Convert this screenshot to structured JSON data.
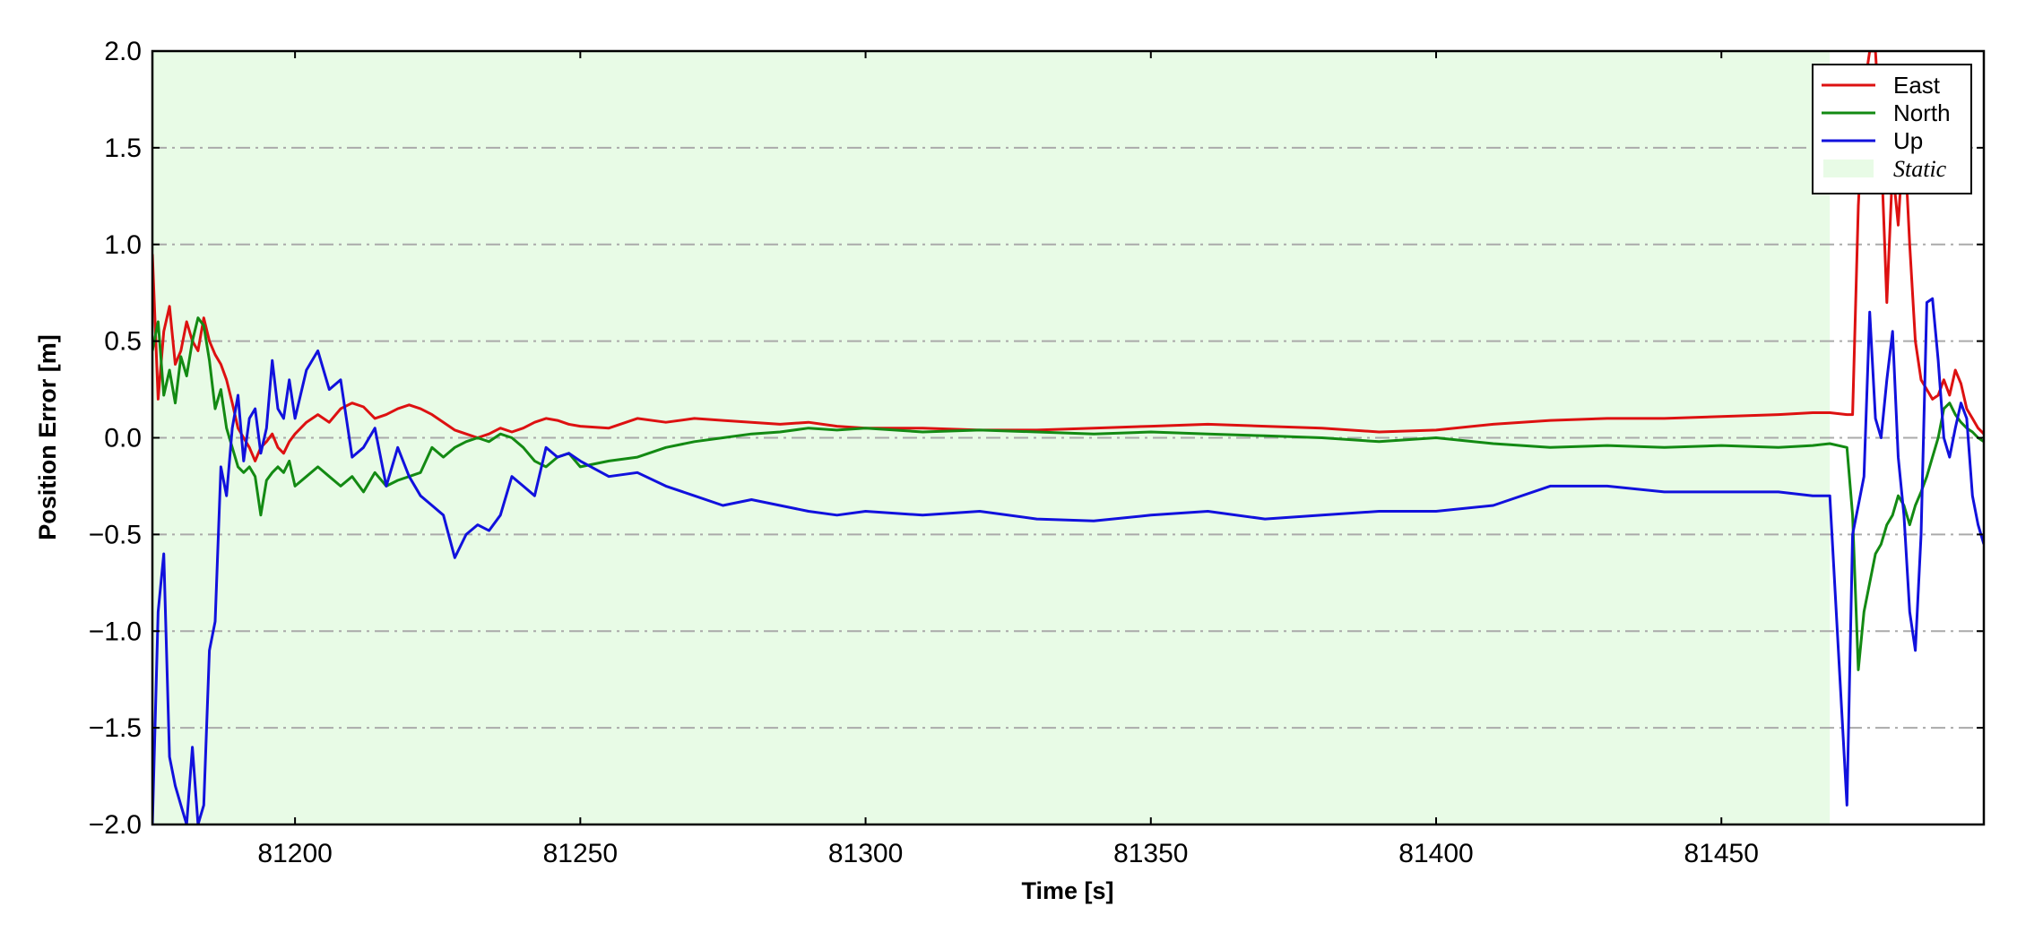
{
  "chart_data": {
    "type": "line",
    "title": "",
    "xlabel": "Time [s]",
    "ylabel": "Position Error [m]",
    "xlim": [
      81175,
      81496
    ],
    "ylim": [
      -2.0,
      2.0
    ],
    "x_ticks": [
      81200,
      81250,
      81300,
      81350,
      81400,
      81450
    ],
    "x_tick_labels": [
      "81200",
      "81250",
      "81300",
      "81350",
      "81400",
      "81450"
    ],
    "y_ticks": [
      2.0,
      1.5,
      1.0,
      0.5,
      0.0,
      -0.5,
      -1.0,
      -1.5,
      -2.0
    ],
    "y_tick_labels": [
      "2.0",
      "1.5",
      "1.0",
      "0.5",
      "0.0",
      "−0.5",
      "−1.0",
      "−1.5",
      "−2.0"
    ],
    "grid": "horizontal dash-dot",
    "legend_position": "top-right",
    "static_region": {
      "label": "Static",
      "x_start": 81175,
      "x_end": 81469,
      "color": "#e8fbe6"
    },
    "series": [
      {
        "name": "East",
        "color": "#dd1111",
        "x": [
          81175,
          81176,
          81177,
          81178,
          81179,
          81180,
          81181,
          81182,
          81183,
          81184,
          81185,
          81186,
          81187,
          81188,
          81189,
          81190,
          81191,
          81192,
          81193,
          81194,
          81195,
          81196,
          81197,
          81198,
          81199,
          81200,
          81202,
          81204,
          81206,
          81208,
          81210,
          81212,
          81214,
          81216,
          81218,
          81220,
          81222,
          81224,
          81226,
          81228,
          81230,
          81232,
          81234,
          81236,
          81238,
          81240,
          81242,
          81244,
          81246,
          81248,
          81250,
          81255,
          81260,
          81265,
          81270,
          81275,
          81280,
          81285,
          81290,
          81295,
          81300,
          81310,
          81320,
          81330,
          81340,
          81350,
          81360,
          81370,
          81380,
          81390,
          81400,
          81410,
          81420,
          81430,
          81440,
          81450,
          81460,
          81466,
          81469,
          81472,
          81473,
          81474,
          81475,
          81476,
          81477,
          81478,
          81479,
          81480,
          81481,
          81482,
          81483,
          81484,
          81485,
          81486,
          81487,
          81488,
          81489,
          81490,
          81491,
          81492,
          81493,
          81494,
          81495,
          81496
        ],
        "values": [
          0.95,
          0.2,
          0.55,
          0.68,
          0.38,
          0.45,
          0.6,
          0.5,
          0.45,
          0.62,
          0.5,
          0.43,
          0.38,
          0.3,
          0.18,
          0.05,
          0.0,
          -0.05,
          -0.12,
          -0.05,
          -0.02,
          0.02,
          -0.05,
          -0.08,
          -0.02,
          0.02,
          0.08,
          0.12,
          0.08,
          0.15,
          0.18,
          0.16,
          0.1,
          0.12,
          0.15,
          0.17,
          0.15,
          0.12,
          0.08,
          0.04,
          0.02,
          0.0,
          0.02,
          0.05,
          0.03,
          0.05,
          0.08,
          0.1,
          0.09,
          0.07,
          0.06,
          0.05,
          0.1,
          0.08,
          0.1,
          0.09,
          0.08,
          0.07,
          0.08,
          0.06,
          0.05,
          0.05,
          0.04,
          0.04,
          0.05,
          0.06,
          0.07,
          0.06,
          0.05,
          0.03,
          0.04,
          0.07,
          0.09,
          0.1,
          0.1,
          0.11,
          0.12,
          0.13,
          0.13,
          0.12,
          0.12,
          1.2,
          1.8,
          2.0,
          2.0,
          1.5,
          0.7,
          1.4,
          1.1,
          1.6,
          1.0,
          0.5,
          0.3,
          0.25,
          0.2,
          0.22,
          0.3,
          0.22,
          0.35,
          0.28,
          0.15,
          0.1,
          0.05,
          0.02
        ]
      },
      {
        "name": "North",
        "color": "#138a13",
        "x": [
          81175,
          81176,
          81177,
          81178,
          81179,
          81180,
          81181,
          81182,
          81183,
          81184,
          81185,
          81186,
          81187,
          81188,
          81189,
          81190,
          81191,
          81192,
          81193,
          81194,
          81195,
          81196,
          81197,
          81198,
          81199,
          81200,
          81202,
          81204,
          81206,
          81208,
          81210,
          81212,
          81214,
          81216,
          81218,
          81220,
          81222,
          81224,
          81226,
          81228,
          81230,
          81232,
          81234,
          81236,
          81238,
          81240,
          81242,
          81244,
          81246,
          81248,
          81250,
          81255,
          81260,
          81265,
          81270,
          81275,
          81280,
          81285,
          81290,
          81295,
          81300,
          81310,
          81320,
          81330,
          81340,
          81350,
          81360,
          81370,
          81380,
          81390,
          81400,
          81410,
          81420,
          81430,
          81440,
          81450,
          81460,
          81466,
          81469,
          81472,
          81473,
          81474,
          81475,
          81476,
          81477,
          81478,
          81479,
          81480,
          81481,
          81482,
          81483,
          81484,
          81485,
          81486,
          81487,
          81488,
          81489,
          81490,
          81491,
          81492,
          81493,
          81494,
          81495,
          81496
        ],
        "values": [
          0.45,
          0.6,
          0.22,
          0.35,
          0.18,
          0.42,
          0.32,
          0.5,
          0.62,
          0.58,
          0.4,
          0.15,
          0.25,
          0.05,
          -0.05,
          -0.15,
          -0.18,
          -0.15,
          -0.2,
          -0.4,
          -0.22,
          -0.18,
          -0.15,
          -0.18,
          -0.12,
          -0.25,
          -0.2,
          -0.15,
          -0.2,
          -0.25,
          -0.2,
          -0.28,
          -0.18,
          -0.25,
          -0.22,
          -0.2,
          -0.18,
          -0.05,
          -0.1,
          -0.05,
          -0.02,
          0.0,
          -0.02,
          0.02,
          0.0,
          -0.05,
          -0.12,
          -0.15,
          -0.1,
          -0.08,
          -0.15,
          -0.12,
          -0.1,
          -0.05,
          -0.02,
          0.0,
          0.02,
          0.03,
          0.05,
          0.04,
          0.05,
          0.03,
          0.04,
          0.03,
          0.02,
          0.03,
          0.02,
          0.01,
          0.0,
          -0.02,
          0.0,
          -0.03,
          -0.05,
          -0.04,
          -0.05,
          -0.04,
          -0.05,
          -0.04,
          -0.03,
          -0.05,
          -0.4,
          -1.2,
          -0.9,
          -0.75,
          -0.6,
          -0.55,
          -0.45,
          -0.4,
          -0.3,
          -0.35,
          -0.45,
          -0.35,
          -0.28,
          -0.2,
          -0.1,
          0.0,
          0.15,
          0.18,
          0.12,
          0.08,
          0.05,
          0.03,
          0.0,
          -0.02
        ]
      },
      {
        "name": "Up",
        "color": "#1111dd",
        "x": [
          81175,
          81176,
          81177,
          81178,
          81179,
          81180,
          81181,
          81182,
          81183,
          81184,
          81185,
          81186,
          81187,
          81188,
          81189,
          81190,
          81191,
          81192,
          81193,
          81194,
          81195,
          81196,
          81197,
          81198,
          81199,
          81200,
          81202,
          81204,
          81206,
          81208,
          81210,
          81212,
          81214,
          81216,
          81218,
          81220,
          81222,
          81224,
          81226,
          81228,
          81230,
          81232,
          81234,
          81236,
          81238,
          81240,
          81242,
          81244,
          81246,
          81248,
          81250,
          81255,
          81260,
          81265,
          81270,
          81275,
          81280,
          81285,
          81290,
          81295,
          81300,
          81310,
          81320,
          81330,
          81340,
          81350,
          81360,
          81370,
          81380,
          81390,
          81400,
          81410,
          81420,
          81430,
          81440,
          81450,
          81460,
          81466,
          81469,
          81472,
          81473,
          81474,
          81475,
          81476,
          81477,
          81478,
          81479,
          81480,
          81481,
          81482,
          81483,
          81484,
          81485,
          81486,
          81487,
          81488,
          81489,
          81490,
          81491,
          81492,
          81493,
          81494,
          81495,
          81496
        ],
        "values": [
          -2.0,
          -0.9,
          -0.6,
          -1.65,
          -1.8,
          -1.9,
          -2.0,
          -1.6,
          -2.0,
          -1.9,
          -1.1,
          -0.95,
          -0.15,
          -0.3,
          0.05,
          0.22,
          -0.12,
          0.1,
          0.15,
          -0.08,
          0.05,
          0.4,
          0.15,
          0.1,
          0.3,
          0.1,
          0.35,
          0.45,
          0.25,
          0.3,
          -0.1,
          -0.05,
          0.05,
          -0.25,
          -0.05,
          -0.2,
          -0.3,
          -0.35,
          -0.4,
          -0.62,
          -0.5,
          -0.45,
          -0.48,
          -0.4,
          -0.2,
          -0.25,
          -0.3,
          -0.05,
          -0.1,
          -0.08,
          -0.12,
          -0.2,
          -0.18,
          -0.25,
          -0.3,
          -0.35,
          -0.32,
          -0.35,
          -0.38,
          -0.4,
          -0.38,
          -0.4,
          -0.38,
          -0.42,
          -0.43,
          -0.4,
          -0.38,
          -0.42,
          -0.4,
          -0.38,
          -0.38,
          -0.35,
          -0.25,
          -0.25,
          -0.28,
          -0.28,
          -0.28,
          -0.3,
          -0.3,
          -1.9,
          -0.5,
          -0.35,
          -0.2,
          0.65,
          0.1,
          0.0,
          0.3,
          0.55,
          -0.1,
          -0.4,
          -0.9,
          -1.1,
          -0.5,
          0.7,
          0.72,
          0.4,
          0.0,
          -0.1,
          0.05,
          0.18,
          0.1,
          -0.3,
          -0.45,
          -0.55
        ]
      }
    ]
  }
}
